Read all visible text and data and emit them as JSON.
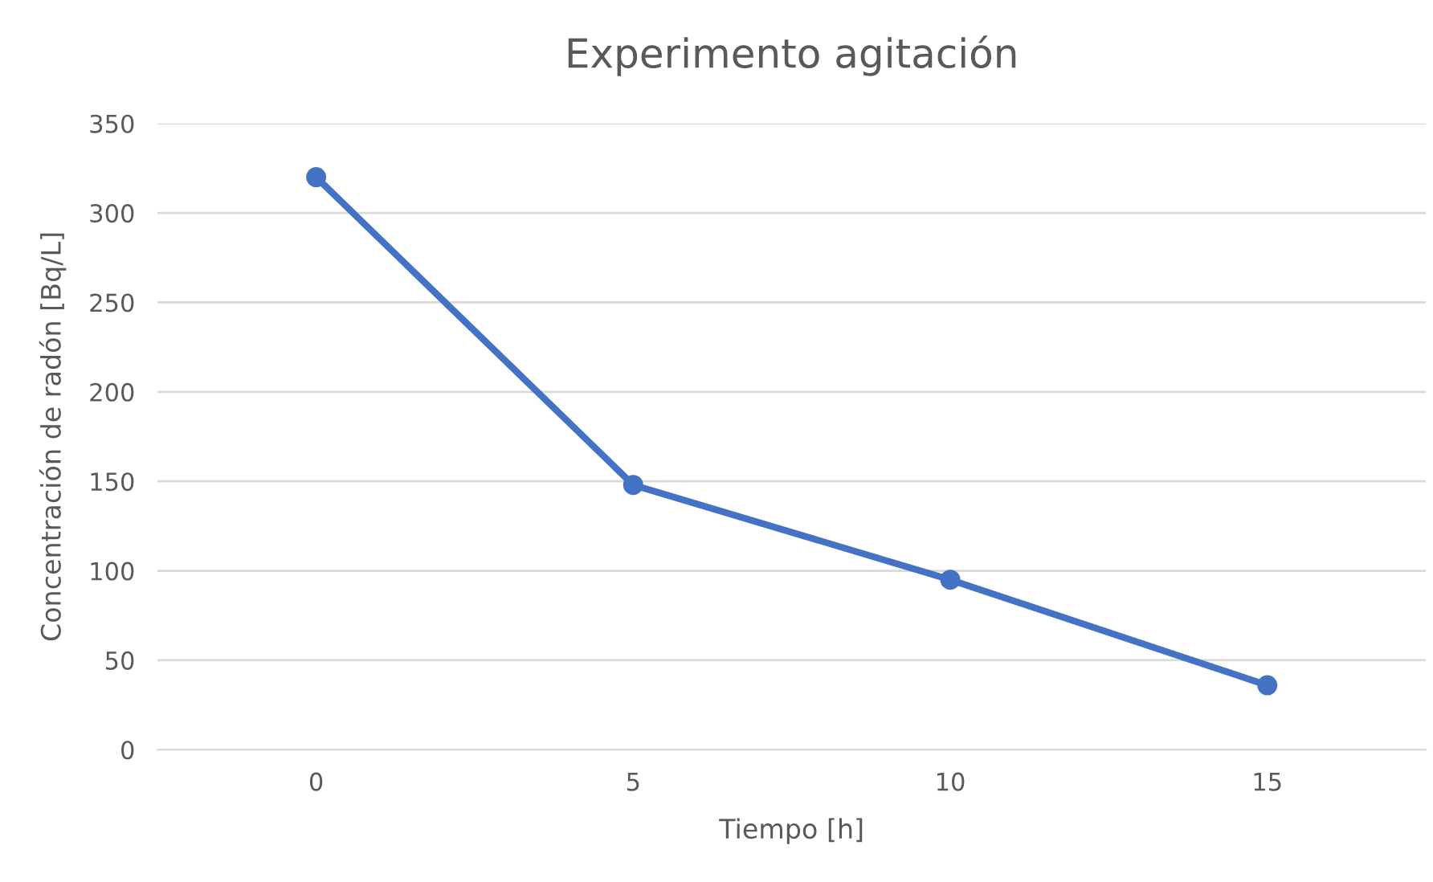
{
  "chart_data": {
    "type": "line",
    "title": "Experimento agitación",
    "xlabel": "Tiempo [h]",
    "ylabel": "Concentración de radón [Bq/L]",
    "categories": [
      "0",
      "5",
      "10",
      "15"
    ],
    "series": [
      {
        "color": "#4472c4",
        "values": [
          320,
          148,
          95,
          36
        ]
      }
    ],
    "ylim": [
      0,
      350
    ],
    "yticks": [
      0,
      50,
      100,
      150,
      200,
      250,
      300,
      350
    ],
    "grid": "y",
    "marker": "circle",
    "line_style": "solid"
  }
}
